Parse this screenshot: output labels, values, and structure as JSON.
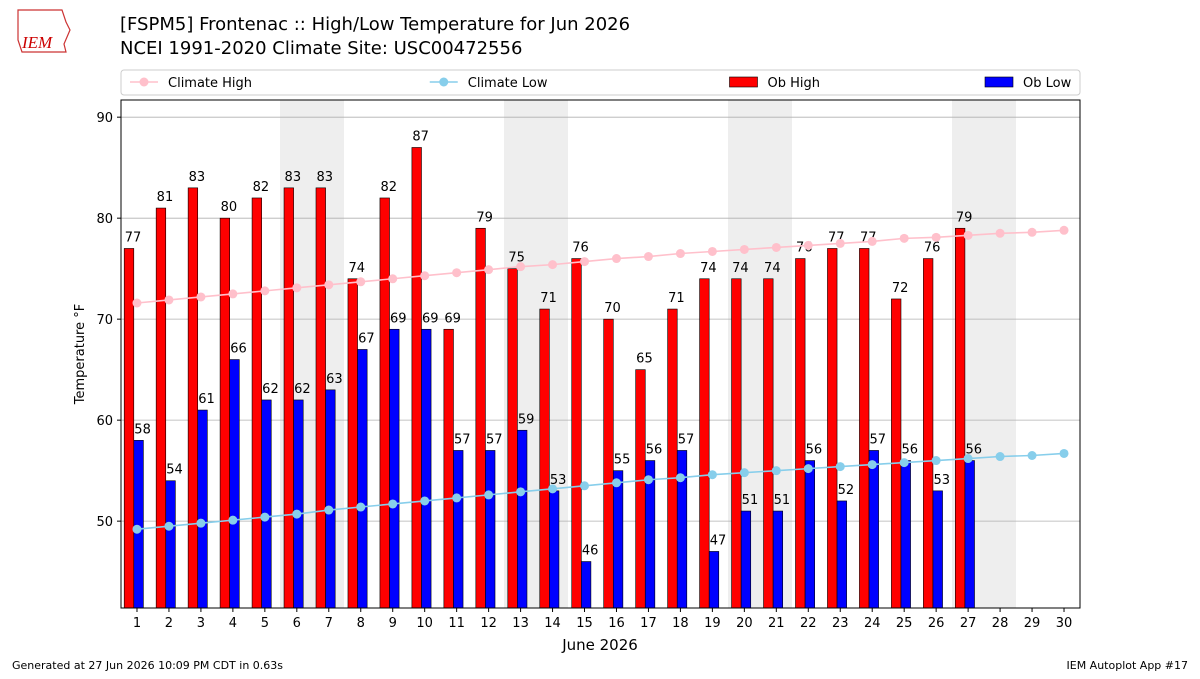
{
  "logo": "IEM",
  "chart_data": {
    "type": "bar",
    "title": "[FSPM5] Frontenac :: High/Low Temperature for Jun 2026",
    "subtitle": "NCEI 1991-2020 Climate Site: USC00472556",
    "x_label": "June 2026",
    "y_label": "Temperature °F",
    "x": [
      1,
      2,
      3,
      4,
      5,
      6,
      7,
      8,
      9,
      10,
      11,
      12,
      13,
      14,
      15,
      16,
      17,
      18,
      19,
      20,
      21,
      22,
      23,
      24,
      25,
      26,
      27,
      28,
      29,
      30
    ],
    "xlim": [
      0.5,
      30.5
    ],
    "xticks": [
      1,
      2,
      3,
      4,
      5,
      6,
      7,
      8,
      9,
      10,
      11,
      12,
      13,
      14,
      15,
      16,
      17,
      18,
      19,
      20,
      21,
      22,
      23,
      24,
      25,
      26,
      27,
      28,
      29,
      30
    ],
    "ylim": [
      41.4,
      91.7
    ],
    "yticks": [
      50,
      60,
      70,
      80,
      90
    ],
    "grid": true,
    "series": [
      {
        "name": "Climate High",
        "type": "line",
        "color": "#ffc0cb",
        "values": [
          71.6,
          71.9,
          72.2,
          72.5,
          72.8,
          73.1,
          73.4,
          73.7,
          74.0,
          74.3,
          74.6,
          74.9,
          75.2,
          75.4,
          75.7,
          76.0,
          76.2,
          76.5,
          76.7,
          76.9,
          77.1,
          77.3,
          77.5,
          77.7,
          78.0,
          78.1,
          78.3,
          78.5,
          78.6,
          78.8
        ]
      },
      {
        "name": "Climate Low",
        "type": "line",
        "color": "#87ceeb",
        "values": [
          49.2,
          49.5,
          49.8,
          50.1,
          50.4,
          50.7,
          51.1,
          51.4,
          51.7,
          52.0,
          52.3,
          52.6,
          52.9,
          53.2,
          53.5,
          53.8,
          54.1,
          54.3,
          54.6,
          54.8,
          55.0,
          55.2,
          55.4,
          55.6,
          55.8,
          56.0,
          56.2,
          56.4,
          56.5,
          56.7
        ]
      },
      {
        "name": "Ob High",
        "type": "bar",
        "color": "#ff0000",
        "values": [
          77,
          81,
          83,
          80,
          82,
          83,
          83,
          74,
          82,
          87,
          69,
          79,
          75,
          71,
          76,
          70,
          65,
          71,
          74,
          74,
          74,
          76,
          77,
          77,
          72,
          76,
          79,
          null,
          null,
          null
        ]
      },
      {
        "name": "Ob Low",
        "type": "bar",
        "color": "#0000ff",
        "values": [
          58,
          54,
          61,
          66,
          62,
          62,
          63,
          67,
          69,
          69,
          57,
          57,
          59,
          53,
          46,
          55,
          56,
          57,
          47,
          51,
          51,
          56,
          52,
          57,
          56,
          53,
          56,
          null,
          null,
          null
        ]
      }
    ],
    "footer_left": "Generated at 27 Jun 2026 10:09 PM CDT in 0.63s",
    "footer_right": "IEM Autoplot App #17"
  }
}
